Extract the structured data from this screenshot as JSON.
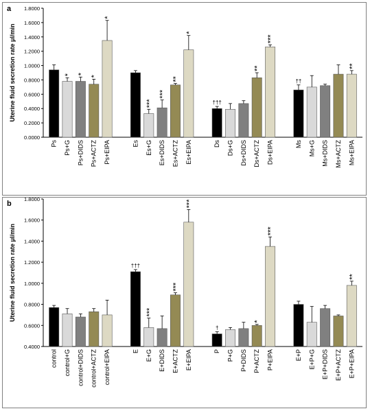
{
  "chart_data": [
    {
      "panel": "a",
      "type": "bar",
      "ylabel": "Uterine fluid secretion rate μl/min",
      "ylim": [
        0,
        1.8
      ],
      "yticks": [
        "0.0000",
        "0.2000",
        "0.4000",
        "0.6000",
        "0.8000",
        "1.0000",
        "1.2000",
        "1.4000",
        "1.6000",
        "1.8000"
      ],
      "categories": [
        "Ps",
        "Ps+G",
        "Ps+DIDS",
        "Ps+ACTZ",
        "Ps+EIPA",
        "Es",
        "Es+G",
        "Es+DIDS",
        "Es+ACTZ",
        "Es+EIPA",
        "Ds",
        "Ds+G",
        "Ds+DIDS",
        "Ds+ACTZ",
        "Ds+EIPA",
        "Ms",
        "Ms+G",
        "Ms+DIDS",
        "Ms+ACTZ",
        "Ms+EIPA"
      ],
      "values": [
        0.94,
        0.78,
        0.78,
        0.74,
        1.35,
        0.9,
        0.33,
        0.41,
        0.73,
        1.22,
        0.4,
        0.39,
        0.47,
        0.83,
        1.26,
        0.66,
        0.7,
        0.72,
        0.88,
        0.88
      ],
      "errors": [
        0.07,
        0.05,
        0.06,
        0.07,
        0.28,
        0.03,
        0.06,
        0.11,
        0.02,
        0.2,
        0.03,
        0.08,
        0.04,
        0.07,
        0.03,
        0.07,
        0.16,
        0.02,
        0.13,
        0.05
      ],
      "annotations": [
        "",
        "*",
        "*",
        "*",
        "*",
        "",
        "***",
        "***",
        "**",
        "*",
        "†††",
        "",
        "",
        "**",
        "***",
        "††",
        "",
        "",
        "",
        "**"
      ],
      "colors": [
        "#000000",
        "#d9d9d9",
        "#808080",
        "#948a54",
        "#ddd9c3",
        "#000000",
        "#d9d9d9",
        "#808080",
        "#948a54",
        "#ddd9c3",
        "#000000",
        "#d9d9d9",
        "#808080",
        "#948a54",
        "#ddd9c3",
        "#000000",
        "#d9d9d9",
        "#808080",
        "#948a54",
        "#ddd9c3"
      ],
      "groups": 4,
      "grid": false
    },
    {
      "panel": "b",
      "type": "bar",
      "ylabel": "Uterine fluid secretion rate μl/min",
      "ylim": [
        0.4,
        1.8
      ],
      "yticks": [
        "0.4000",
        "0.6000",
        "0.8000",
        "1.0000",
        "1.2000",
        "1.4000",
        "1.6000",
        "1.8000"
      ],
      "categories": [
        "control",
        "control+G",
        "control+DIDS",
        "control+ACTZ",
        "control+EIPA",
        "E",
        "E+G",
        "E+DIDS",
        "E+ACTZ",
        "E+EIPA",
        "P",
        "P+G",
        "P+DIDS",
        "P+ACTZ",
        "P+EIPA",
        "E+P",
        "E+P+G",
        "E+P+DIDS",
        "E+P+ACTZ",
        "E+P+EIPA"
      ],
      "values": [
        0.77,
        0.71,
        0.68,
        0.73,
        0.7,
        1.11,
        0.58,
        0.57,
        0.89,
        1.58,
        0.52,
        0.56,
        0.57,
        0.6,
        1.35,
        0.8,
        0.63,
        0.76,
        0.69,
        0.98
      ],
      "errors": [
        0.02,
        0.05,
        0.03,
        0.03,
        0.14,
        0.02,
        0.09,
        0.12,
        0.02,
        0.12,
        0.02,
        0.02,
        0.06,
        0.01,
        0.09,
        0.03,
        0.15,
        0.03,
        0.01,
        0.04
      ],
      "annotations": [
        "",
        "",
        "",
        "",
        "",
        "†††",
        "***",
        "",
        "***",
        "***",
        "†",
        "",
        "",
        "*",
        "***",
        "",
        "",
        "",
        "",
        "**"
      ],
      "colors": [
        "#000000",
        "#d9d9d9",
        "#808080",
        "#948a54",
        "#ddd9c3",
        "#000000",
        "#d9d9d9",
        "#808080",
        "#948a54",
        "#ddd9c3",
        "#000000",
        "#d9d9d9",
        "#808080",
        "#948a54",
        "#ddd9c3",
        "#000000",
        "#d9d9d9",
        "#808080",
        "#948a54",
        "#ddd9c3"
      ],
      "groups": 4,
      "grid": false
    }
  ],
  "panels": {
    "a_label": "a",
    "b_label": "b"
  }
}
